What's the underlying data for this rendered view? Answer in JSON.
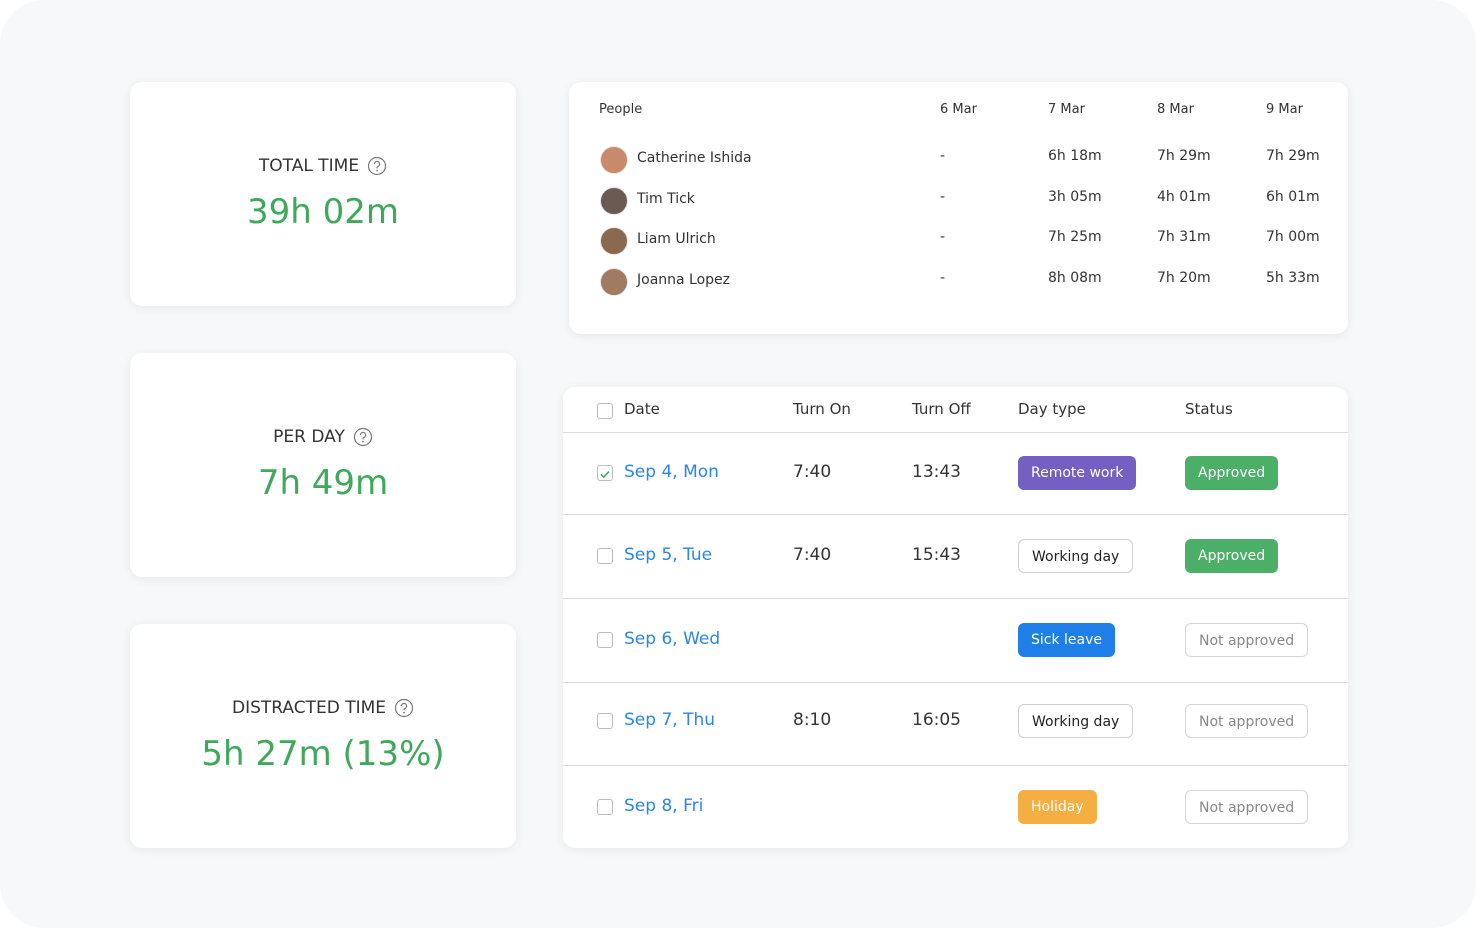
{
  "stats": [
    {
      "label": "TOTAL TIME",
      "value": "39h 02m"
    },
    {
      "label": "PER DAY",
      "value": "7h 49m"
    },
    {
      "label": "DISTRACTED TIME",
      "value": "5h 27m (13%)"
    }
  ],
  "people_table": {
    "headers": [
      "People",
      "6 Mar",
      "7 Mar",
      "8 Mar",
      "9 Mar"
    ],
    "rows": [
      {
        "name": "Catherine Ishida",
        "cells": [
          "-",
          "6h 18m",
          "7h 29m",
          "7h 29m"
        ]
      },
      {
        "name": "Tim Tick",
        "cells": [
          "-",
          "3h 05m",
          "4h 01m",
          "6h 01m"
        ]
      },
      {
        "name": "Liam Ulrich",
        "cells": [
          "-",
          "7h 25m",
          "7h 31m",
          "7h 00m"
        ]
      },
      {
        "name": "Joanna Lopez",
        "cells": [
          "-",
          "8h 08m",
          "7h 20m",
          "5h 33m"
        ]
      }
    ]
  },
  "timesheet": {
    "headers": [
      "Date",
      "Turn On",
      "Turn Off",
      "Day type",
      "Status"
    ],
    "rows": [
      {
        "checked": true,
        "date": "Sep 4, Mon",
        "turn_on": "7:40",
        "turn_off": "13:43",
        "day_type": "Remote work",
        "day_type_color": "#7460c2",
        "status": "Approved",
        "status_color": "#4caf68"
      },
      {
        "checked": false,
        "date": "Sep 5, Tue",
        "turn_on": "7:40",
        "turn_off": "15:43",
        "day_type": "Working day",
        "day_type_color": null,
        "status": "Approved",
        "status_color": "#4caf68"
      },
      {
        "checked": false,
        "date": "Sep 6, Wed",
        "turn_on": null,
        "turn_off": null,
        "day_type": "Sick leave",
        "day_type_color": "#1f7fe8",
        "status": "Not approved",
        "status_color": null
      },
      {
        "checked": false,
        "date": "Sep 7, Thu",
        "turn_on": "8:10",
        "turn_off": "16:05",
        "day_type": "Working day",
        "day_type_color": null,
        "status": "Not approved",
        "status_color": null
      },
      {
        "checked": false,
        "date": "Sep 8, Fri",
        "turn_on": null,
        "turn_off": null,
        "day_type": "Holiday",
        "day_type_color": "#f5ae42",
        "status": "Not approved",
        "status_color": null
      }
    ]
  }
}
